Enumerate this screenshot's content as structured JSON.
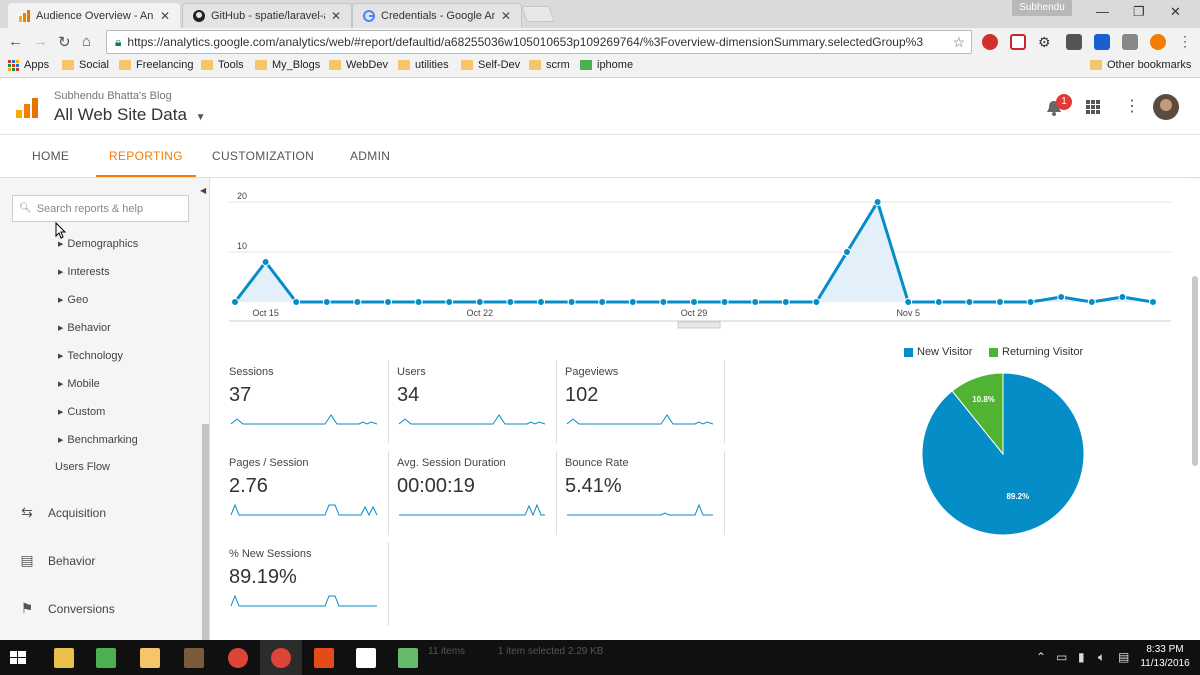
{
  "browser": {
    "tabs": [
      {
        "title": "Audience Overview - An",
        "icon": "analytics-icon",
        "active": true
      },
      {
        "title": "GitHub - spatie/laravel-a",
        "icon": "github-icon",
        "active": false
      },
      {
        "title": "Credentials - Google An",
        "icon": "google-icon",
        "active": false
      }
    ],
    "user_chip": "Subhendu",
    "url": "https://analytics.google.com/analytics/web/#report/defaultid/a68255036w105010653p109269764/%3Foverview-dimensionSummary.selectedGroup%3",
    "bookmarks": [
      "Apps",
      "Social",
      "Freelancing",
      "Tools",
      "My_Blogs",
      "WebDev",
      "utilities",
      "Self-Dev",
      "scrm",
      "iphome"
    ],
    "other_bookmarks": "Other bookmarks"
  },
  "ga": {
    "account": "Subhendu Bhatta's Blog",
    "property": "All Web Site Data",
    "notifications": "1",
    "nav": [
      "HOME",
      "REPORTING",
      "CUSTOMIZATION",
      "ADMIN"
    ],
    "active_nav": "REPORTING"
  },
  "sidebar": {
    "search_placeholder": "Search reports & help",
    "sub_items": [
      "Demographics",
      "Interests",
      "Geo",
      "Behavior",
      "Technology",
      "Mobile",
      "Custom",
      "Benchmarking"
    ],
    "users_flow": "Users Flow",
    "sections": [
      "Acquisition",
      "Behavior",
      "Conversions"
    ]
  },
  "metrics": [
    {
      "label": "Sessions",
      "value": "37"
    },
    {
      "label": "Users",
      "value": "34"
    },
    {
      "label": "Pageviews",
      "value": "102"
    },
    {
      "label": "Pages / Session",
      "value": "2.76"
    },
    {
      "label": "Avg. Session Duration",
      "value": "00:00:19"
    },
    {
      "label": "Bounce Rate",
      "value": "5.41%"
    },
    {
      "label": "% New Sessions",
      "value": "89.19%"
    }
  ],
  "chart_data": [
    {
      "type": "area",
      "series": [
        {
          "values": [
            0,
            8,
            0,
            0,
            0,
            0,
            0,
            0,
            0,
            0,
            0,
            0,
            0,
            0,
            0,
            0,
            0,
            0,
            0,
            0,
            10,
            20,
            0,
            0,
            0,
            0,
            0,
            1,
            0,
            1,
            0
          ]
        }
      ],
      "x_tick_labels": [
        "Oct 15",
        "Oct 22",
        "Oct 29",
        "Nov 5"
      ],
      "y_tick_labels": [
        "10",
        "20"
      ],
      "ylim": [
        0,
        20
      ],
      "grid": true
    },
    {
      "type": "pie",
      "legend": [
        "New Visitor",
        "Returning Visitor"
      ],
      "legend_position": "top",
      "values": [
        89.2,
        10.8
      ],
      "labels": [
        "89.2%",
        "10.8%"
      ],
      "colors": [
        "#058dc7",
        "#50b432"
      ]
    }
  ],
  "taskbar": {
    "ghost_text": [
      "11 items",
      "1 item selected  2.29 KB"
    ],
    "time": "8:33 PM",
    "date": "11/13/2016"
  }
}
